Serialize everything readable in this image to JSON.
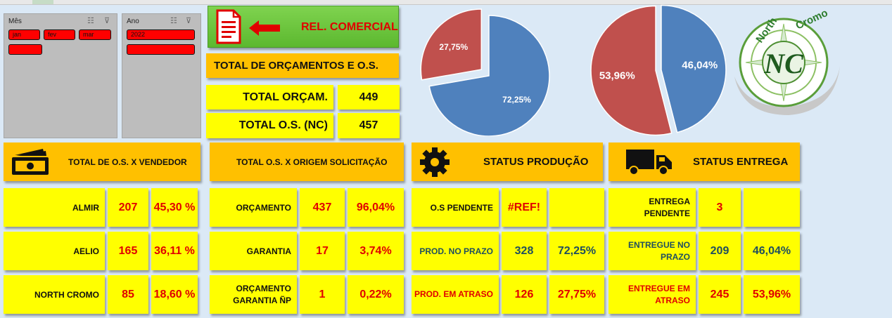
{
  "slicers": {
    "month": {
      "title": "Mês",
      "items": [
        "jan",
        "fev",
        "mar",
        ""
      ]
    },
    "year": {
      "title": "Ano",
      "items": [
        "2022",
        ""
      ]
    }
  },
  "header": {
    "rel_button": "REL. COMERCIAL",
    "total_title": "TOTAL DE ORÇAMENTOS E O.S.",
    "total_orcam_label": "TOTAL ORÇAM.",
    "total_orcam_value": "449",
    "total_os_label": "TOTAL O.S. (NC)",
    "total_os_value": "457"
  },
  "pies": [
    {
      "slices": [
        {
          "label": "72,25%",
          "value": 72.25,
          "color": "#4f81bd"
        },
        {
          "label": "27,75%",
          "value": 27.75,
          "color": "#c0504d"
        }
      ]
    },
    {
      "slices": [
        {
          "label": "46,04%",
          "value": 46.04,
          "color": "#4f81bd"
        },
        {
          "label": "53,96%",
          "value": 53.96,
          "color": "#c0504d"
        }
      ]
    }
  ],
  "logo": {
    "text_top": "North",
    "text_right": "Cromo",
    "initials": "NC"
  },
  "sections": {
    "vendedor": {
      "title": "TOTAL DE O.S. X VENDEDOR",
      "rows": [
        {
          "name": "ALMIR",
          "count": "207",
          "pct": "45,30 %"
        },
        {
          "name": "AELIO",
          "count": "165",
          "pct": "36,11 %"
        },
        {
          "name": "NORTH CROMO",
          "count": "85",
          "pct": "18,60 %"
        }
      ]
    },
    "origem": {
      "title": "TOTAL O.S. X ORIGEM SOLICITAÇÃO",
      "rows": [
        {
          "name": "ORÇAMENTO",
          "count": "437",
          "pct": "96,04%"
        },
        {
          "name": "GARANTIA",
          "count": "17",
          "pct": "3,74%"
        },
        {
          "name": "ORÇAMENTO GARANTIA ÑP",
          "count": "1",
          "pct": "0,22%"
        }
      ]
    },
    "producao": {
      "title": "STATUS PRODUÇÃO",
      "rows": [
        {
          "name": "O.S PENDENTE",
          "count": "#REF!",
          "pct": ""
        },
        {
          "name": "PROD. NO PRAZO",
          "count": "328",
          "pct": "72,25%"
        },
        {
          "name": "PROD. EM ATRASO",
          "count": "126",
          "pct": "27,75%"
        }
      ]
    },
    "entrega": {
      "title": "STATUS ENTREGA",
      "rows": [
        {
          "name": "ENTREGA PENDENTE",
          "count": "3",
          "pct": ""
        },
        {
          "name": "ENTREGUE NO PRAZO",
          "count": "209",
          "pct": "46,04%"
        },
        {
          "name": "ENTREGUE EM ATRASO",
          "count": "245",
          "pct": "53,96%"
        }
      ]
    }
  }
}
